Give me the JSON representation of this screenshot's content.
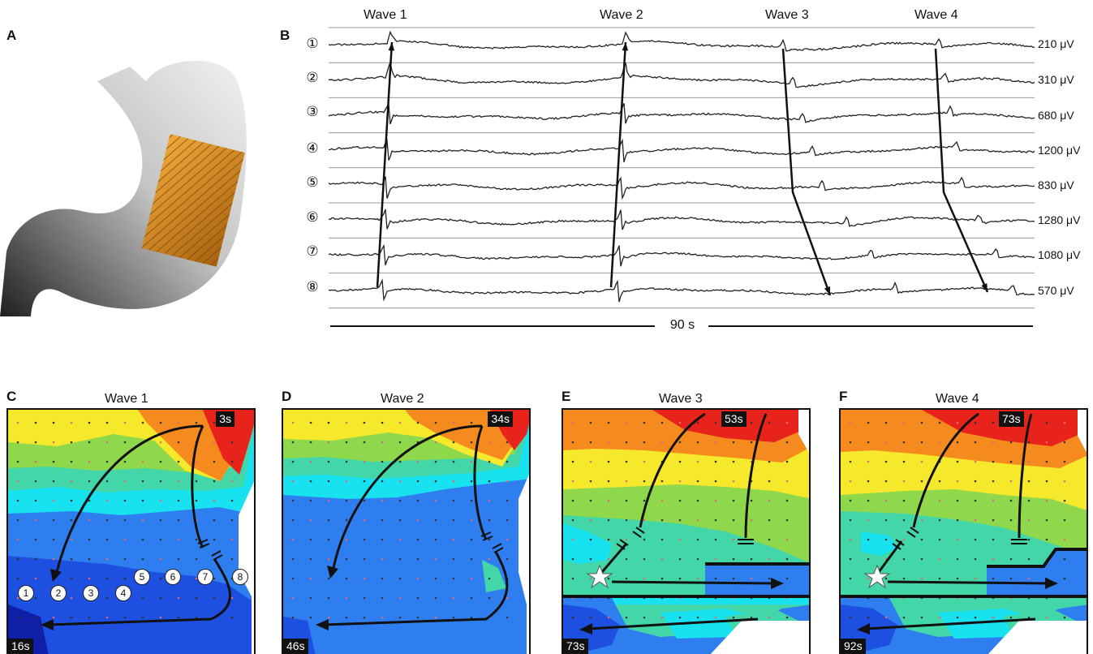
{
  "panels": {
    "A": "A",
    "B": "B",
    "C": "C",
    "D": "D",
    "E": "E",
    "F": "F"
  },
  "traces": {
    "wave_labels": [
      "Wave 1",
      "Wave 2",
      "Wave 3",
      "Wave 4"
    ],
    "channels": [
      "①",
      "②",
      "③",
      "④",
      "⑤",
      "⑥",
      "⑦",
      "⑧"
    ],
    "amplitudes": [
      "210 μV",
      "310 μV",
      "680 μV",
      "1200 μV",
      "830 μV",
      "1280 μV",
      "1080 μV",
      "570 μV"
    ],
    "duration": "90 s"
  },
  "maps": [
    {
      "title": "Wave 1",
      "start": "3s",
      "end": "16s"
    },
    {
      "title": "Wave 2",
      "start": "34s",
      "end": "46s"
    },
    {
      "title": "Wave 3",
      "start": "53s",
      "end": "73s"
    },
    {
      "title": "Wave 4",
      "start": "73s",
      "end": "92s"
    }
  ],
  "electrode_labels": [
    "1",
    "2",
    "3",
    "4",
    "5",
    "6",
    "7",
    "8"
  ],
  "colors": {
    "red": "#e8231b",
    "orange": "#f58a1f",
    "yellow": "#f6e92b",
    "green": "#8fd84b",
    "teal": "#43d6a8",
    "cyan": "#18e1f0",
    "blue": "#2f7ef0",
    "deep_blue": "#1d4fe0",
    "navy": "#0f1fa8",
    "stomach_gray": "#cfcfcf",
    "array_orange": "#d98a1e"
  }
}
